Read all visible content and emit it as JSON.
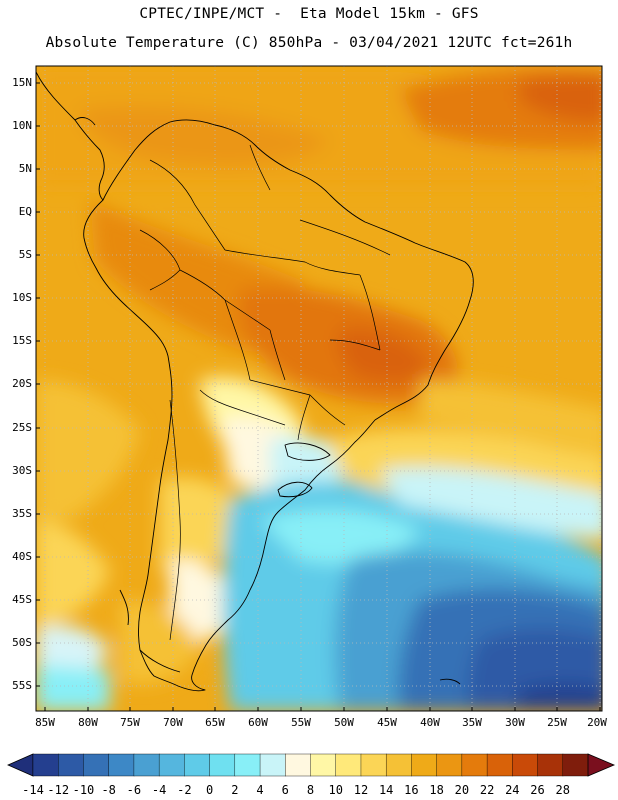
{
  "header": {
    "line1": "CPTEC/INPE/MCT -  Eta Model 15km - GFS",
    "line2": "Absolute Temperature (C) 850hPa - 03/04/2021 12UTC fct=261h"
  },
  "axes": {
    "latitude_labels": [
      "15N",
      "10N",
      "5N",
      "EQ",
      "5S",
      "10S",
      "15S",
      "20S",
      "25S",
      "30S",
      "35S",
      "40S",
      "45S",
      "50S",
      "55S"
    ],
    "longitude_labels": [
      "85W",
      "80W",
      "75W",
      "70W",
      "65W",
      "60W",
      "55W",
      "50W",
      "45W",
      "40W",
      "35W",
      "30W",
      "25W",
      "20W"
    ]
  },
  "colorbar": {
    "labels": [
      "-14",
      "-12",
      "-10",
      "-8",
      "-6",
      "-4",
      "-2",
      "0",
      "2",
      "4",
      "6",
      "8",
      "10",
      "12",
      "14",
      "16",
      "18",
      "20",
      "22",
      "24",
      "26",
      "28"
    ],
    "colors": [
      "#243f8f",
      "#2d5aa6",
      "#3571b6",
      "#3d88c6",
      "#4aa0d2",
      "#55b6de",
      "#5fcbe8",
      "#6fe0f0",
      "#88eff7",
      "#c9f4f8",
      "#fff8e0",
      "#fff7a6",
      "#ffe97a",
      "#fbd556",
      "#f5c136",
      "#efaa18",
      "#eb9612",
      "#e47b0c",
      "#d96209",
      "#c94a08",
      "#a83208",
      "#7f1d0c"
    ]
  }
}
